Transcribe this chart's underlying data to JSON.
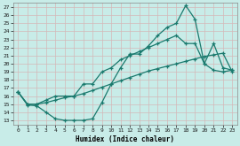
{
  "xlabel": "Humidex (Indice chaleur)",
  "bg_color": "#c8ece8",
  "grid_color": "#b0d8d4",
  "line_color": "#1a7a6e",
  "x_ticks": [
    0,
    1,
    2,
    3,
    4,
    5,
    6,
    7,
    8,
    9,
    10,
    11,
    12,
    13,
    14,
    15,
    16,
    17,
    18,
    19,
    20,
    21,
    22,
    23
  ],
  "y_ticks": [
    13,
    14,
    15,
    16,
    17,
    18,
    19,
    20,
    21,
    22,
    23,
    24,
    25,
    26,
    27
  ],
  "ylim": [
    12.5,
    27.5
  ],
  "xlim": [
    -0.5,
    23.5
  ],
  "series1_x": [
    0,
    1,
    2,
    3,
    4,
    5,
    6,
    7,
    8,
    9,
    10,
    11,
    12,
    13,
    14,
    15,
    16,
    17,
    18,
    19,
    20,
    21,
    22,
    23
  ],
  "series1_y": [
    16.5,
    14.9,
    14.8,
    14.0,
    13.2,
    13.0,
    13.0,
    13.0,
    13.2,
    15.2,
    17.5,
    19.5,
    21.2,
    21.2,
    22.2,
    23.5,
    24.5,
    25.0,
    27.2,
    25.5,
    20.0,
    19.2,
    19.0,
    19.2
  ],
  "series2_x": [
    0,
    1,
    2,
    3,
    4,
    5,
    6,
    7,
    8,
    9,
    10,
    11,
    12,
    13,
    14,
    15,
    16,
    17,
    18,
    19,
    20,
    21,
    22,
    23
  ],
  "series2_y": [
    16.5,
    15.0,
    15.0,
    15.5,
    16.0,
    16.0,
    16.0,
    17.5,
    17.5,
    19.0,
    19.5,
    20.5,
    21.0,
    21.5,
    22.0,
    22.5,
    23.0,
    23.5,
    22.5,
    22.5,
    20.0,
    22.5,
    19.5,
    19.2
  ],
  "series3_x": [
    0,
    1,
    2,
    3,
    4,
    5,
    6,
    7,
    8,
    9,
    10,
    11,
    12,
    13,
    14,
    15,
    16,
    17,
    18,
    19,
    20,
    21,
    22,
    23
  ],
  "series3_y": [
    16.5,
    15.0,
    15.0,
    15.2,
    15.5,
    15.8,
    16.0,
    16.3,
    16.7,
    17.1,
    17.5,
    17.9,
    18.3,
    18.7,
    19.1,
    19.4,
    19.7,
    20.0,
    20.3,
    20.6,
    20.9,
    21.1,
    21.3,
    19.0
  ]
}
